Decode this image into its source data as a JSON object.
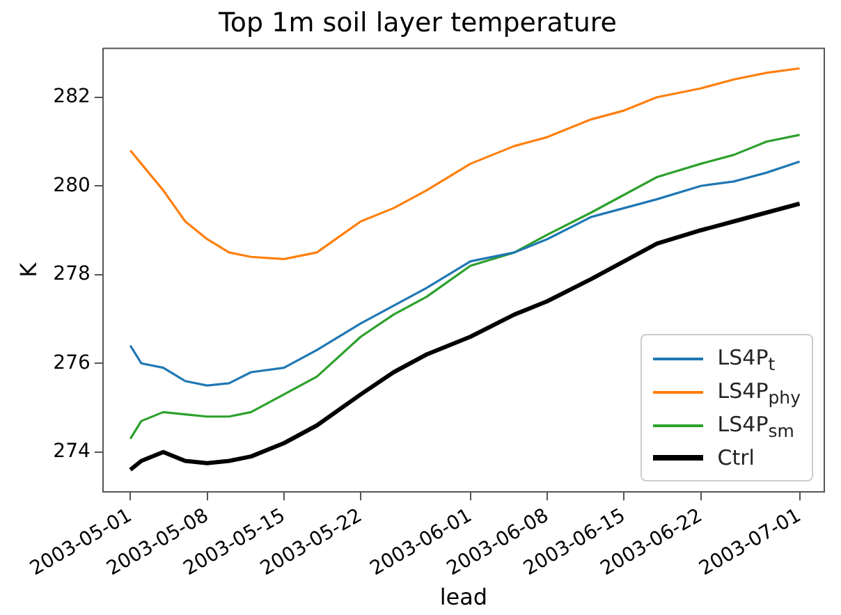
{
  "chart_data": {
    "type": "line",
    "title": "Top 1m soil layer temperature",
    "xlabel": "lead",
    "ylabel": "K",
    "x": [
      "2003-05-01",
      "2003-05-02",
      "2003-05-04",
      "2003-05-06",
      "2003-05-08",
      "2003-05-10",
      "2003-05-12",
      "2003-05-15",
      "2003-05-18",
      "2003-05-22",
      "2003-05-25",
      "2003-05-28",
      "2003-06-01",
      "2003-06-05",
      "2003-06-08",
      "2003-06-12",
      "2003-06-15",
      "2003-06-18",
      "2003-06-22",
      "2003-06-25",
      "2003-06-28",
      "2003-07-01"
    ],
    "series": [
      {
        "name": "LS4P$_{t}$",
        "color": "#1f77b4",
        "values": [
          276.4,
          276.0,
          275.9,
          275.6,
          275.5,
          275.55,
          275.8,
          275.9,
          276.3,
          276.9,
          277.3,
          277.7,
          278.3,
          278.5,
          278.8,
          279.3,
          279.5,
          279.7,
          280.0,
          280.1,
          280.3,
          280.55
        ]
      },
      {
        "name": "LS4P$_{phy}$",
        "color": "#ff7f0e",
        "values": [
          280.8,
          280.5,
          279.9,
          279.2,
          278.8,
          278.5,
          278.4,
          278.35,
          278.5,
          279.2,
          279.5,
          279.9,
          280.5,
          280.9,
          281.1,
          281.5,
          281.7,
          282.0,
          282.2,
          282.4,
          282.55,
          282.65
        ]
      },
      {
        "name": "LS4P$_{sm}$",
        "color": "#2ca02c",
        "values": [
          274.3,
          274.7,
          274.9,
          274.85,
          274.8,
          274.8,
          274.9,
          275.3,
          275.7,
          276.6,
          277.1,
          277.5,
          278.2,
          278.5,
          278.9,
          279.4,
          279.8,
          280.2,
          280.5,
          280.7,
          281.0,
          281.15
        ]
      },
      {
        "name": "Ctrl",
        "color": "#000000",
        "values": [
          273.6,
          273.8,
          274.0,
          273.8,
          273.75,
          273.8,
          273.9,
          274.2,
          274.6,
          275.3,
          275.8,
          276.2,
          276.6,
          277.1,
          277.4,
          277.9,
          278.3,
          278.7,
          279.0,
          279.2,
          279.4,
          279.6
        ]
      }
    ],
    "xlim": [
      "2003-04-28T12:00",
      "2003-07-03T06:00"
    ],
    "xticks": [
      "2003-05-01",
      "2003-05-08",
      "2003-05-15",
      "2003-05-22",
      "2003-06-01",
      "2003-06-08",
      "2003-06-15",
      "2003-06-22",
      "2003-07-01"
    ],
    "ylim": [
      273.1,
      283.1
    ],
    "yticks": [
      274,
      276,
      278,
      280,
      282
    ],
    "legend": "bottom right",
    "grid": false,
    "marker": "none",
    "line_style": "solid"
  }
}
